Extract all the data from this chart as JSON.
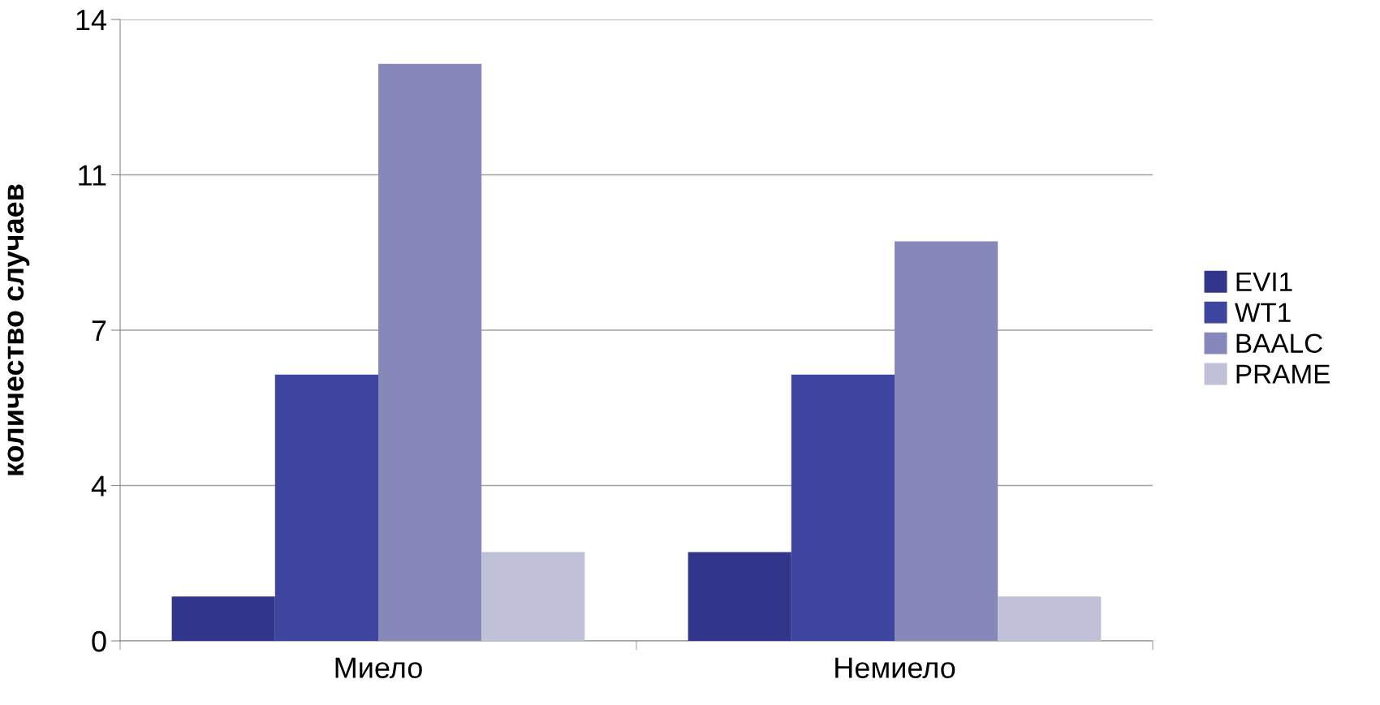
{
  "chart_data": {
    "type": "bar",
    "ylabel": "количество случаев",
    "categories": [
      "Миело",
      "Немиело"
    ],
    "series": [
      {
        "name": "EVI1",
        "color": "#32368a",
        "values": [
          1,
          2
        ]
      },
      {
        "name": "WT1",
        "color": "#3d459f",
        "values": [
          6,
          6
        ]
      },
      {
        "name": "BAALC",
        "color": "#8688b9",
        "values": [
          13,
          9
        ]
      },
      {
        "name": "PRAME",
        "color": "#c0c0d8",
        "values": [
          2,
          1
        ]
      }
    ],
    "ylim": [
      0,
      14
    ],
    "yticks": [
      0,
      {
        "value": 3.5,
        "label": "4"
      },
      7,
      {
        "value": 10.5,
        "label": "11"
      },
      14
    ],
    "grid": "y",
    "legend": "right"
  }
}
